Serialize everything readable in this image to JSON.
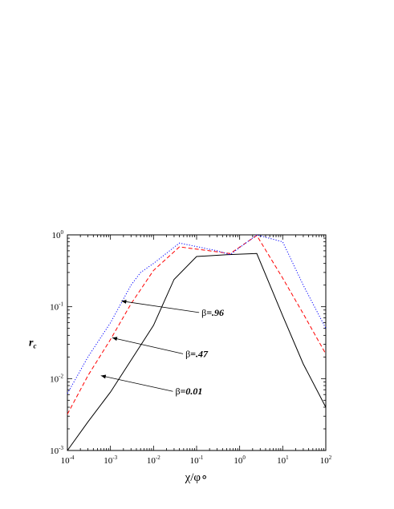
{
  "chart_data": {
    "type": "line",
    "xlabel": "χ/φ∘",
    "ylabel": "r",
    "ylabel_subscript": "c",
    "xscale": "log",
    "yscale": "log",
    "xlim": [
      0.0001,
      100
    ],
    "ylim": [
      0.001,
      1
    ],
    "x_ticks": [
      {
        "base": "10",
        "exp": "-4",
        "value": 0.0001
      },
      {
        "base": "10",
        "exp": "-3",
        "value": 0.001
      },
      {
        "base": "10",
        "exp": "-2",
        "value": 0.01
      },
      {
        "base": "10",
        "exp": "-1",
        "value": 0.1
      },
      {
        "base": "10",
        "exp": "0",
        "value": 1
      },
      {
        "base": "10",
        "exp": "1",
        "value": 10
      },
      {
        "base": "10",
        "exp": "2",
        "value": 100
      }
    ],
    "y_ticks": [
      {
        "base": "10",
        "exp": "-3",
        "value": 0.001
      },
      {
        "base": "10",
        "exp": "-2",
        "value": 0.01
      },
      {
        "base": "10",
        "exp": "-1",
        "value": 0.1
      },
      {
        "base": "10",
        "exp": "0",
        "value": 1
      }
    ],
    "grid": false,
    "series": [
      {
        "color": "#000000",
        "dash": "solid",
        "x": [
          0.0001,
          0.0003,
          0.001,
          0.003,
          0.01,
          0.03,
          0.1,
          0.5,
          2.5,
          10,
          30,
          100
        ],
        "y": [
          0.001,
          0.0025,
          0.0065,
          0.018,
          0.055,
          0.24,
          0.5,
          0.53,
          0.55,
          0.075,
          0.016,
          0.004
        ]
      },
      {
        "color": "#ff0000",
        "dash": "dashed",
        "x": [
          0.0001,
          0.0003,
          0.001,
          0.003,
          0.01,
          0.04,
          0.2,
          0.6,
          2.5,
          10,
          30,
          100
        ],
        "y": [
          0.0032,
          0.011,
          0.035,
          0.11,
          0.32,
          0.68,
          0.6,
          0.55,
          0.98,
          0.25,
          0.08,
          0.022
        ]
      },
      {
        "color": "#0000ff",
        "dash": "dotted",
        "x": [
          0.0001,
          0.0003,
          0.001,
          0.003,
          0.005,
          0.01,
          0.04,
          0.3,
          0.6,
          2.5,
          10,
          30,
          100
        ],
        "y": [
          0.0062,
          0.02,
          0.06,
          0.2,
          0.3,
          0.4,
          0.77,
          0.6,
          0.53,
          1.0,
          0.8,
          0.2,
          0.05
        ]
      }
    ],
    "annotations": [
      {
        "prefix": "β",
        "value": "=.96",
        "arrow_to": {
          "x": 0.0018,
          "y": 0.12
        },
        "text_at": {
          "x": 0.13,
          "y": 0.075
        }
      },
      {
        "prefix": "β",
        "value": "=.47",
        "arrow_to": {
          "x": 0.0011,
          "y": 0.037
        },
        "text_at": {
          "x": 0.055,
          "y": 0.02
        }
      },
      {
        "prefix": "β",
        "value": "=0.01",
        "arrow_to": {
          "x": 0.0006,
          "y": 0.011
        },
        "text_at": {
          "x": 0.032,
          "y": 0.006
        }
      }
    ]
  }
}
